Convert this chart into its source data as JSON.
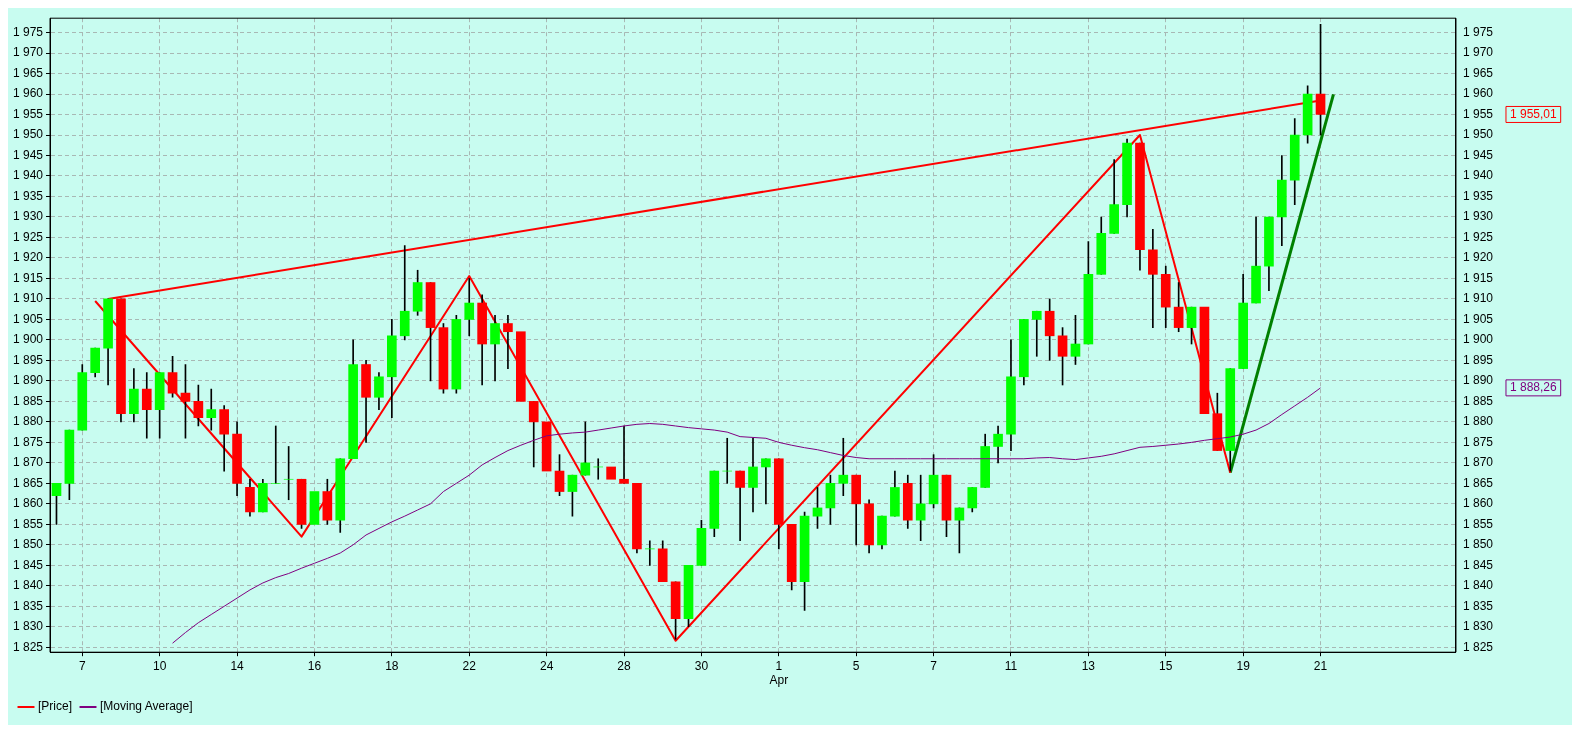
{
  "chart_data": {
    "type": "candlestick",
    "categories": [
      null,
      null,
      "7",
      null,
      null,
      null,
      null,
      null,
      "10",
      null,
      null,
      null,
      null,
      null,
      "14",
      null,
      null,
      null,
      null,
      null,
      "16",
      null,
      null,
      null,
      null,
      null,
      "18",
      null,
      null,
      null,
      null,
      null,
      "22",
      null,
      null,
      null,
      null,
      null,
      "24",
      null,
      null,
      null,
      null,
      null,
      "28",
      null,
      null,
      null,
      null,
      null,
      "30",
      null,
      null,
      null,
      null,
      null,
      "1\nApr",
      null,
      null,
      null,
      null,
      null,
      "5",
      null,
      null,
      null,
      null,
      null,
      "7",
      null,
      null,
      null,
      null,
      null,
      "11",
      null,
      null,
      null,
      null,
      null,
      "13",
      null,
      null,
      null,
      null,
      null,
      "15",
      null,
      null,
      null,
      null,
      null,
      "19",
      null,
      null,
      null,
      null,
      null,
      "21",
      null,
      null,
      null,
      null,
      null,
      null,
      null,
      null,
      null,
      null
    ],
    "series": [
      {
        "name": "[Price]",
        "color": "#ff0000",
        "colors": [
          "#00ff00",
          "#00ff00",
          "#00ff00",
          "#00ff00",
          "#00ff00",
          "#ff0000",
          "#00ff00",
          "#ff0000",
          "#00ff00",
          "#ff0000",
          "#ff0000",
          "#ff0000",
          "#00ff00",
          "#ff0000",
          "#ff0000",
          "#ff0000",
          "#00ff00",
          "#00ff00",
          "#00ff00",
          "#ff0000",
          "#00ff00",
          "#ff0000",
          "#00ff00",
          "#00ff00",
          "#ff0000",
          "#00ff00",
          "#00ff00",
          "#00ff00",
          "#00ff00",
          "#ff0000",
          "#ff0000",
          "#00ff00",
          "#00ff00",
          "#ff0000",
          "#00ff00",
          "#ff0000",
          "#ff0000",
          "#ff0000",
          "#ff0000",
          "#ff0000",
          "#00ff00",
          "#00ff00",
          "#00ff00",
          "#ff0000",
          "#ff0000",
          "#ff0000",
          "#00ff00",
          "#ff0000",
          "#ff0000",
          "#00ff00",
          "#00ff00",
          "#00ff00",
          "#00ff00",
          "#ff0000",
          "#00ff00",
          "#00ff00",
          "#ff0000",
          "#ff0000",
          "#00ff00",
          "#00ff00",
          "#00ff00",
          "#00ff00",
          "#ff0000",
          "#ff0000",
          "#00ff00",
          "#00ff00",
          "#ff0000",
          "#00ff00",
          "#00ff00",
          "#ff0000",
          "#00ff00",
          "#00ff00",
          "#00ff00",
          "#00ff00",
          "#00ff00",
          "#00ff00",
          "#00ff00",
          "#ff0000",
          "#ff0000",
          "#00ff00",
          "#00ff00",
          "#00ff00",
          "#00ff00",
          "#00ff00",
          "#ff0000",
          "#ff0000",
          "#ff0000",
          "#ff0000",
          "#00ff00",
          "#ff0000",
          "#ff0000",
          "#00ff00",
          "#00ff00",
          "#00ff00",
          "#00ff00",
          "#00ff00",
          "#00ff00",
          "#00ff00",
          "#ff0000",
          null,
          null,
          null,
          null,
          null,
          null,
          null,
          null,
          null,
          null
        ],
        "ohlc": [
          [
            1862,
            1865,
            1855,
            1865
          ],
          [
            1865,
            1878,
            1861,
            1878
          ],
          [
            1878,
            1894,
            1878,
            1892
          ],
          [
            1892,
            1898,
            1891,
            1898
          ],
          [
            1898,
            1910,
            1889,
            1910
          ],
          [
            1910,
            1910,
            1880,
            1882
          ],
          [
            1882,
            1893,
            1880,
            1888
          ],
          [
            1888,
            1892,
            1876,
            1883
          ],
          [
            1883,
            1892,
            1876,
            1892
          ],
          [
            1892,
            1896,
            1886,
            1887
          ],
          [
            1887,
            1894,
            1876,
            1885
          ],
          [
            1885,
            1889,
            1879,
            1881
          ],
          [
            1881,
            1888,
            1878,
            1883
          ],
          [
            1883,
            1884,
            1868,
            1877
          ],
          [
            1877,
            1880,
            1862,
            1865
          ],
          [
            1864,
            1866,
            1857,
            1858
          ],
          [
            1858,
            1866,
            1858,
            1865
          ],
          [
            1865,
            1879,
            1865,
            1865
          ],
          [
            1866,
            1874,
            1861,
            1866
          ],
          [
            1866,
            1866,
            1854,
            1855
          ],
          [
            1855,
            1863,
            1855,
            1863
          ],
          [
            1863,
            1866,
            1855,
            1856
          ],
          [
            1856,
            1871,
            1853,
            1871
          ],
          [
            1871,
            1900,
            1871,
            1894
          ],
          [
            1894,
            1895,
            1875,
            1886
          ],
          [
            1886,
            1892,
            1883,
            1891
          ],
          [
            1891,
            1905,
            1881,
            1901
          ],
          [
            1901,
            1923,
            1900,
            1907
          ],
          [
            1907,
            1917,
            1906,
            1914
          ],
          [
            1914,
            1914,
            1890,
            1903
          ],
          [
            1903,
            1904,
            1887,
            1888
          ],
          [
            1888,
            1906,
            1887,
            1905
          ],
          [
            1905,
            1915,
            1901,
            1909
          ],
          [
            1909,
            1911,
            1889,
            1899
          ],
          [
            1899,
            1906,
            1890,
            1904
          ],
          [
            1904,
            1906,
            1893,
            1902
          ],
          [
            1902,
            1902,
            1885,
            1885
          ],
          [
            1885,
            1885,
            1869,
            1880
          ],
          [
            1880,
            1880,
            1868,
            1868
          ],
          [
            1868,
            1872,
            1862,
            1863
          ],
          [
            1863,
            1867,
            1857,
            1867
          ],
          [
            1867,
            1880,
            1867,
            1870
          ],
          [
            1869,
            1871,
            1866,
            1869
          ],
          [
            1869,
            1869,
            1866,
            1866
          ],
          [
            1866,
            1879,
            1865,
            1865
          ],
          [
            1865,
            1865,
            1848,
            1849
          ],
          [
            1849,
            1851,
            1845,
            1849
          ],
          [
            1849,
            1851,
            1841,
            1841
          ],
          [
            1841,
            1841,
            1827,
            1832
          ],
          [
            1832,
            1845,
            1830,
            1845
          ],
          [
            1845,
            1856,
            1845,
            1854
          ],
          [
            1854,
            1868,
            1852,
            1868
          ],
          [
            1868,
            1876,
            1865,
            1868
          ],
          [
            1868,
            1868,
            1851,
            1864
          ],
          [
            1864,
            1876,
            1858,
            1869
          ],
          [
            1869,
            1871,
            1860,
            1871
          ],
          [
            1871,
            1871,
            1849,
            1855
          ],
          [
            1855,
            1855,
            1839,
            1841
          ],
          [
            1841,
            1858,
            1834,
            1857
          ],
          [
            1857,
            1864,
            1854,
            1859
          ],
          [
            1859,
            1867,
            1855,
            1865
          ],
          [
            1865,
            1876,
            1862,
            1867
          ],
          [
            1867,
            1867,
            1850,
            1860
          ],
          [
            1860,
            1861,
            1848,
            1850
          ],
          [
            1850,
            1857,
            1849,
            1857
          ],
          [
            1857,
            1868,
            1857,
            1864
          ],
          [
            1865,
            1867,
            1854,
            1856
          ],
          [
            1856,
            1867,
            1851,
            1860
          ],
          [
            1860,
            1872,
            1859,
            1867
          ],
          [
            1867,
            1867,
            1852,
            1856
          ],
          [
            1856,
            1859,
            1848,
            1859
          ],
          [
            1859,
            1864,
            1858,
            1864
          ],
          [
            1864,
            1877,
            1864,
            1874
          ],
          [
            1874,
            1879,
            1870,
            1877
          ],
          [
            1877,
            1900,
            1873,
            1891
          ],
          [
            1891,
            1905,
            1889,
            1905
          ],
          [
            1905,
            1907,
            1896,
            1907
          ],
          [
            1907,
            1910,
            1895,
            1901
          ],
          [
            1901,
            1903,
            1889,
            1896
          ],
          [
            1896,
            1906,
            1894,
            1899
          ],
          [
            1899,
            1924,
            1899,
            1916
          ],
          [
            1916,
            1930,
            1916,
            1926
          ],
          [
            1926,
            1944,
            1926,
            1933
          ],
          [
            1933,
            1949,
            1930,
            1948
          ],
          [
            1948,
            1948,
            1917,
            1922
          ],
          [
            1922,
            1927,
            1903,
            1916
          ],
          [
            1916,
            1918,
            1903,
            1908
          ],
          [
            1908,
            1914,
            1902,
            1903
          ],
          [
            1903,
            1908,
            1899,
            1908
          ],
          [
            1908,
            1908,
            1882,
            1882
          ],
          [
            1882,
            1887,
            1873,
            1873
          ],
          [
            1873,
            1893,
            1868,
            1893
          ],
          [
            1893,
            1916,
            1893,
            1909
          ],
          [
            1909,
            1930,
            1909,
            1918
          ],
          [
            1918,
            1930,
            1912,
            1930
          ],
          [
            1930,
            1945,
            1923,
            1939
          ],
          [
            1939,
            1954,
            1933,
            1950
          ],
          [
            1950,
            1962,
            1948,
            1960
          ],
          [
            1960,
            1977,
            1950,
            1955.01
          ],
          null,
          null,
          null,
          null,
          null,
          null,
          null,
          null,
          null,
          null
        ]
      },
      {
        "type": "line",
        "name": "[Moving Average]",
        "color": "#800080",
        "values": [
          null,
          null,
          null,
          null,
          null,
          null,
          null,
          null,
          null,
          1826,
          1828.6,
          1831,
          1833,
          1835,
          1837,
          1839,
          1840.7,
          1842,
          1843,
          1844.3,
          1845.5,
          1846.7,
          1848,
          1850,
          1852.4,
          1854,
          1855.6,
          1857,
          1858.5,
          1860,
          1863,
          1865,
          1867,
          1869.5,
          1871.3,
          1873,
          1874.3,
          1875.5,
          1876.6,
          1877,
          1877.3,
          1877.5,
          1878,
          1878.5,
          1879,
          1879.4,
          1879.6,
          1879.4,
          1879,
          1878.6,
          1878.3,
          1878,
          1877.5,
          1876.4,
          1876.2,
          1876,
          1875,
          1874.3,
          1873.7,
          1873.2,
          1872.5,
          1871.8,
          1871.3,
          1871,
          1871,
          1871,
          1871,
          1871,
          1871,
          1871,
          1871,
          1871,
          1871,
          1871,
          1871,
          1871,
          1871.2,
          1871.3,
          1871,
          1870.8,
          1871.2,
          1871.6,
          1872.2,
          1873,
          1873.8,
          1874,
          1874.3,
          1874.6,
          1875,
          1875.5,
          1875.9,
          1876.3,
          1877,
          1878,
          1879.6,
          1881.8,
          1883.9,
          1886,
          1888.3,
          null,
          null,
          null,
          null,
          null,
          null,
          null,
          null,
          null,
          null
        ]
      },
      {
        "type": "line",
        "color": "#ff0000",
        "values": [
          null,
          null,
          null,
          1909.5,
          null,
          null,
          null,
          null,
          null,
          null,
          null,
          null,
          null,
          null,
          null,
          null,
          null,
          null,
          null,
          1852,
          null,
          null,
          null,
          null,
          null,
          null,
          null,
          null,
          null,
          null,
          null,
          null,
          1915.6,
          null,
          null,
          null,
          null,
          null,
          null,
          null,
          null,
          null,
          null,
          null,
          null,
          null,
          null,
          null,
          1826.6,
          null,
          null,
          null,
          null,
          null,
          null,
          null,
          null,
          null,
          null,
          null,
          null,
          null,
          null,
          null,
          null,
          null,
          null,
          null,
          null,
          null,
          null,
          null,
          null,
          null,
          null,
          null,
          null,
          null,
          null,
          null,
          null,
          null,
          null,
          null,
          1950,
          null,
          null,
          null,
          null,
          null,
          null,
          1867.6,
          null,
          null,
          null,
          null,
          null,
          null,
          null,
          null,
          null,
          null,
          null,
          null,
          null,
          null,
          null,
          null,
          null
        ]
      },
      {
        "type": "line",
        "color": "#ff0000",
        "values": [
          null,
          null,
          null,
          null,
          1910,
          null,
          null,
          null,
          null,
          null,
          null,
          null,
          null,
          null,
          null,
          null,
          null,
          null,
          null,
          null,
          null,
          null,
          null,
          null,
          null,
          null,
          null,
          null,
          null,
          null,
          null,
          null,
          null,
          null,
          null,
          null,
          null,
          null,
          null,
          null,
          null,
          null,
          null,
          null,
          null,
          null,
          null,
          null,
          null,
          null,
          null,
          null,
          null,
          null,
          null,
          null,
          null,
          null,
          null,
          null,
          null,
          null,
          null,
          null,
          null,
          null,
          null,
          null,
          null,
          null,
          null,
          null,
          null,
          null,
          null,
          null,
          null,
          null,
          null,
          null,
          null,
          null,
          null,
          null,
          null,
          null,
          null,
          null,
          null,
          null,
          null,
          null,
          null,
          null,
          null,
          null,
          null,
          null,
          1958.4,
          null,
          null,
          null,
          null,
          null,
          null,
          null,
          null,
          null,
          null
        ]
      },
      {
        "type": "line",
        "color": "#008000",
        "values": [
          null,
          null,
          null,
          null,
          null,
          null,
          null,
          null,
          null,
          null,
          null,
          null,
          null,
          null,
          null,
          null,
          null,
          null,
          null,
          null,
          null,
          null,
          null,
          null,
          null,
          null,
          null,
          null,
          null,
          null,
          null,
          null,
          null,
          null,
          null,
          null,
          null,
          null,
          null,
          null,
          null,
          null,
          null,
          null,
          null,
          null,
          null,
          null,
          null,
          null,
          null,
          null,
          null,
          null,
          null,
          null,
          null,
          null,
          null,
          null,
          null,
          null,
          null,
          null,
          null,
          null,
          null,
          null,
          null,
          null,
          null,
          null,
          null,
          null,
          null,
          null,
          null,
          null,
          null,
          null,
          null,
          null,
          null,
          null,
          null,
          null,
          null,
          null,
          null,
          null,
          null,
          1867.6,
          null,
          null,
          null,
          null,
          null,
          null,
          null,
          1959.9,
          null,
          null,
          null,
          null,
          null,
          null,
          null,
          null,
          null
        ]
      }
    ],
    "ylim": [
      1823.8,
      1978.5
    ],
    "yticks": [
      {
        "value": 1825,
        "label": "1 825"
      },
      {
        "value": 1830,
        "label": "1 830"
      },
      {
        "value": 1835,
        "label": "1 835"
      },
      {
        "value": 1840,
        "label": "1 840"
      },
      {
        "value": 1845,
        "label": "1 845"
      },
      {
        "value": 1850,
        "label": "1 850"
      },
      {
        "value": 1855,
        "label": "1 855"
      },
      {
        "value": 1860,
        "label": "1 860"
      },
      {
        "value": 1865,
        "label": "1 865"
      },
      {
        "value": 1870,
        "label": "1 870"
      },
      {
        "value": 1875,
        "label": "1 875"
      },
      {
        "value": 1880,
        "label": "1 880"
      },
      {
        "value": 1885,
        "label": "1 885"
      },
      {
        "value": 1890,
        "label": "1 890"
      },
      {
        "value": 1895,
        "label": "1 895"
      },
      {
        "value": 1900,
        "label": "1 900"
      },
      {
        "value": 1905,
        "label": "1 905"
      },
      {
        "value": 1910,
        "label": "1 910"
      },
      {
        "value": 1915,
        "label": "1 915"
      },
      {
        "value": 1920,
        "label": "1 920"
      },
      {
        "value": 1925,
        "label": "1 925"
      },
      {
        "value": 1930,
        "label": "1 930"
      },
      {
        "value": 1935,
        "label": "1 935"
      },
      {
        "value": 1940,
        "label": "1 940"
      },
      {
        "value": 1945,
        "label": "1 945"
      },
      {
        "value": 1950,
        "label": "1 950"
      },
      {
        "value": 1955,
        "label": "1 955"
      },
      {
        "value": 1960,
        "label": "1 960"
      },
      {
        "value": 1965,
        "label": "1 965"
      },
      {
        "value": 1970,
        "label": "1 970"
      },
      {
        "value": 1975,
        "label": "1 975"
      }
    ],
    "y2lim": [
      1823.8,
      1978.5
    ],
    "y2ticks": [
      {
        "value": 1825,
        "label": "1 825"
      },
      {
        "value": 1830,
        "label": "1 830"
      },
      {
        "value": 1835,
        "label": "1 835"
      },
      {
        "value": 1840,
        "label": "1 840"
      },
      {
        "value": 1845,
        "label": "1 845"
      },
      {
        "value": 1850,
        "label": "1 850"
      },
      {
        "value": 1855,
        "label": "1 855"
      },
      {
        "value": 1860,
        "label": "1 860"
      },
      {
        "value": 1865,
        "label": "1 865"
      },
      {
        "value": 1870,
        "label": "1 870"
      },
      {
        "value": 1875,
        "label": "1 875"
      },
      {
        "value": 1880,
        "label": "1 880"
      },
      {
        "value": 1885,
        "label": "1 885"
      },
      {
        "value": 1890,
        "label": "1 890"
      },
      {
        "value": 1895,
        "label": "1 895"
      },
      {
        "value": 1900,
        "label": "1 900"
      },
      {
        "value": 1905,
        "label": "1 905"
      },
      {
        "value": 1910,
        "label": "1 910"
      },
      {
        "value": 1915,
        "label": "1 915"
      },
      {
        "value": 1920,
        "label": "1 920"
      },
      {
        "value": 1925,
        "label": "1 925"
      },
      {
        "value": 1930,
        "label": "1 930"
      },
      {
        "value": 1935,
        "label": "1 935"
      },
      {
        "value": 1940,
        "label": "1 940"
      },
      {
        "value": 1945,
        "label": "1 945"
      },
      {
        "value": 1950,
        "label": "1 950"
      },
      {
        "value": 1955,
        "label": "1 955"
      },
      {
        "value": 1960,
        "label": "1 960"
      },
      {
        "value": 1965,
        "label": "1 965"
      },
      {
        "value": 1970,
        "label": "1 970"
      },
      {
        "value": 1975,
        "label": "1 975"
      }
    ],
    "annotations": [
      "1 955,01",
      "1 888,26"
    ],
    "grid": true,
    "legend": "bottom left",
    "line_style": "solid",
    "marker": "none"
  }
}
